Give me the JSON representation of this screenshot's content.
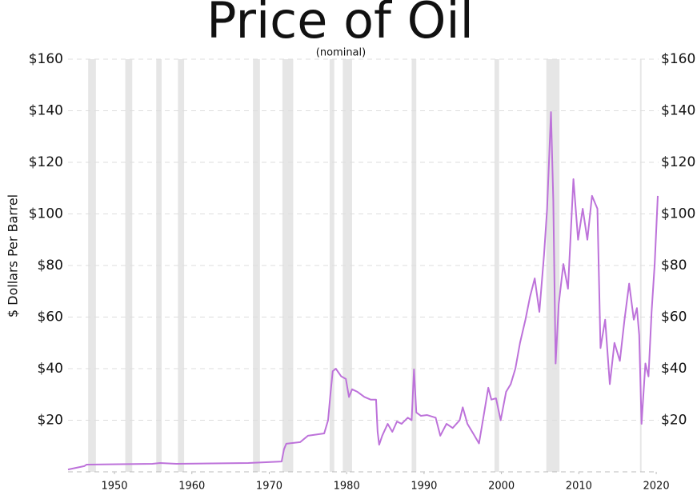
{
  "chart_data": {
    "type": "line",
    "title": "Price of Oil",
    "subtitle": "(nominal)",
    "y_label": "$ Dollars Per Barrel",
    "color": "#bd72da",
    "grid": true,
    "band_color": "#e6e6e6",
    "xlim": [
      1944,
      2020.2
    ],
    "xticks": [
      1950,
      1960,
      1970,
      1980,
      1990,
      2000,
      2010,
      2020
    ],
    "ylim": [
      0,
      160
    ],
    "yticks": [
      {
        "value": 20,
        "label": "$20"
      },
      {
        "value": 40,
        "label": "$40"
      },
      {
        "value": 60,
        "label": "$60"
      },
      {
        "value": 80,
        "label": "$80"
      },
      {
        "value": 100,
        "label": "$100"
      },
      {
        "value": 120,
        "label": "$120"
      },
      {
        "value": 140,
        "label": "$140"
      },
      {
        "value": 160,
        "label": "$160"
      }
    ],
    "y2lim": [
      0,
      160
    ],
    "y2ticks": [
      {
        "value": 20,
        "label": "$20"
      },
      {
        "value": 40,
        "label": "$40"
      },
      {
        "value": 60,
        "label": "$60"
      },
      {
        "value": 80,
        "label": "$80"
      },
      {
        "value": 100,
        "label": "$100"
      },
      {
        "value": 120,
        "label": "$120"
      },
      {
        "value": 140,
        "label": "$140"
      },
      {
        "value": 160,
        "label": "$160"
      }
    ],
    "recession_bands": [
      [
        1946.6,
        1947.6
      ],
      [
        1951.4,
        1952.3
      ],
      [
        1955.4,
        1956.1
      ],
      [
        1958.2,
        1959.0
      ],
      [
        1967.9,
        1968.8
      ],
      [
        1971.7,
        1973.1
      ],
      [
        1977.8,
        1978.4
      ],
      [
        1979.5,
        1980.7
      ],
      [
        1988.4,
        1989.0
      ],
      [
        1999.1,
        1999.7
      ],
      [
        2005.8,
        2007.5
      ],
      [
        2017.9,
        2018.1
      ]
    ],
    "x": [
      1944.0,
      1946.1,
      1946.4,
      1954.9,
      1955.9,
      1958.0,
      1967.3,
      1971.6,
      1971.9,
      1972.2,
      1974.0,
      1975.0,
      1977.1,
      1977.6,
      1977.9,
      1978.2,
      1978.6,
      1979.3,
      1979.9,
      1980.3,
      1980.7,
      1981.4,
      1982.3,
      1983.1,
      1983.8,
      1984.0,
      1984.2,
      1984.6,
      1985.3,
      1985.9,
      1986.5,
      1987.1,
      1987.9,
      1988.4,
      1988.7,
      1989.0,
      1989.6,
      1990.4,
      1991.5,
      1992.1,
      1992.9,
      1993.7,
      1994.6,
      1995.0,
      1995.6,
      1996.4,
      1997.1,
      1997.7,
      1998.3,
      1998.7,
      1999.3,
      1999.9,
      2000.6,
      2001.2,
      2001.8,
      2002.4,
      2003.1,
      2003.7,
      2004.3,
      2004.9,
      2005.5,
      2005.9,
      2006.4,
      2006.7,
      2007.0,
      2007.4,
      2008.0,
      2008.6,
      2009.3,
      2009.9,
      2010.5,
      2011.1,
      2011.7,
      2012.4,
      2012.8,
      2013.4,
      2014.0,
      2014.6,
      2015.3,
      2015.9,
      2016.5,
      2017.1,
      2017.5,
      2017.8,
      2018.1,
      2018.6,
      2019.0,
      2019.4,
      2019.8,
      2020.2
    ],
    "values": [
      0.9,
      2.2,
      2.8,
      3.1,
      3.4,
      3.1,
      3.4,
      4.0,
      8.7,
      10.9,
      11.5,
      14,
      14.9,
      20,
      30,
      39,
      40,
      37,
      36,
      29,
      32,
      31,
      29,
      28,
      28,
      15.5,
      10.5,
      14,
      18.6,
      15.5,
      19.5,
      18.6,
      21,
      20,
      39.7,
      23,
      21.7,
      22,
      21,
      14,
      18.6,
      17,
      20,
      25,
      18.6,
      14.6,
      11,
      21.7,
      32.6,
      28,
      28.5,
      20,
      31,
      34,
      40,
      50,
      59,
      68,
      75,
      62,
      84,
      102,
      139.5,
      105,
      42,
      65,
      80.6,
      71,
      113.5,
      90,
      102,
      90,
      107,
      102,
      48,
      59,
      34,
      50,
      43,
      59,
      73,
      59,
      63.5,
      53,
      18.6,
      42,
      37,
      62,
      80.6,
      107
    ]
  }
}
